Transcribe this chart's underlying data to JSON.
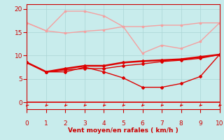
{
  "x": [
    0,
    1,
    2,
    3,
    4,
    5,
    6,
    7,
    8,
    9,
    10
  ],
  "line1": [
    17.0,
    15.3,
    19.5,
    19.5,
    18.5,
    16.2,
    16.2,
    16.5,
    16.5,
    17.0,
    17.0
  ],
  "line2": [
    17.0,
    15.3,
    14.8,
    15.2,
    15.5,
    16.2,
    10.5,
    12.2,
    11.5,
    13.0,
    17.0
  ],
  "line3": [
    8.5,
    6.5,
    6.5,
    7.5,
    6.5,
    5.2,
    3.2,
    3.2,
    4.0,
    5.5,
    10.2
  ],
  "line4": [
    8.5,
    6.5,
    7.2,
    7.8,
    7.8,
    8.5,
    8.8,
    9.0,
    9.2,
    9.7,
    10.2
  ],
  "line5": [
    8.5,
    6.5,
    6.9,
    7.2,
    7.2,
    7.8,
    8.2,
    8.7,
    9.0,
    9.4,
    10.2
  ],
  "color_light": "#f4a0a0",
  "color_dark": "#dd0000",
  "color_mid": "#cc2222",
  "bgcolor": "#c8ecec",
  "xlabel": "Vent moyen/en rafales ( km/h )",
  "xlabel_color": "#cc0000",
  "tick_color": "#cc0000",
  "grid_color": "#aad4d4",
  "xlim": [
    0,
    10
  ],
  "ylim": [
    -1.5,
    21
  ],
  "yticks": [
    0,
    5,
    10,
    15,
    20
  ],
  "xticks": [
    0,
    1,
    2,
    3,
    4,
    5,
    6,
    7,
    8,
    9,
    10
  ]
}
